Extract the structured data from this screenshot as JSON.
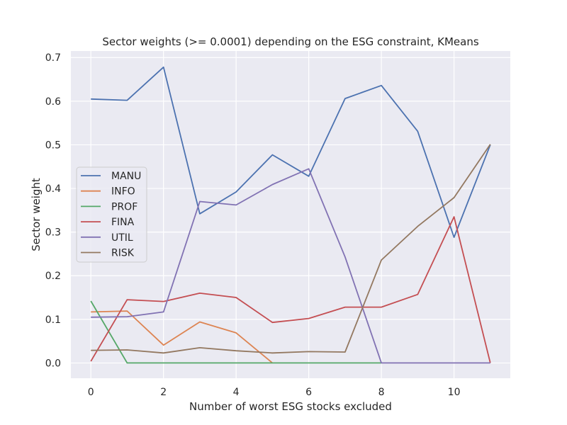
{
  "chart_data": {
    "type": "line",
    "title": "Sector weights (>= 0.0001) depending on the ESG constraint, KMeans",
    "xlabel": "Number of worst ESG stocks excluded",
    "ylabel": "Sector weight",
    "xlim": [
      -0.55,
      11.55
    ],
    "ylim": [
      -0.035,
      0.715
    ],
    "xticks": [
      0,
      2,
      4,
      6,
      8,
      10
    ],
    "yticks": [
      0.0,
      0.1,
      0.2,
      0.3,
      0.4,
      0.5,
      0.6,
      0.7
    ],
    "ytick_labels": [
      "0.0",
      "0.1",
      "0.2",
      "0.3",
      "0.4",
      "0.5",
      "0.6",
      "0.7"
    ],
    "grid": true,
    "legend_position": "center-left",
    "background": "#eaeaf2",
    "series": [
      {
        "name": "MANU",
        "color": "#4c72b0",
        "x": [
          0,
          1,
          2,
          3,
          4,
          5,
          6,
          7,
          8,
          9,
          10,
          11
        ],
        "y": [
          0.605,
          0.602,
          0.678,
          0.342,
          0.392,
          0.477,
          0.428,
          0.606,
          0.636,
          0.531,
          0.288,
          0.5
        ]
      },
      {
        "name": "INFO",
        "color": "#dd8452",
        "x": [
          0,
          1,
          2,
          3,
          4,
          5
        ],
        "y": [
          0.117,
          0.119,
          0.041,
          0.094,
          0.069,
          0.0
        ]
      },
      {
        "name": "PROF",
        "color": "#55a868",
        "x": [
          0,
          1,
          2,
          3,
          4,
          5,
          6,
          7,
          8
        ],
        "y": [
          0.142,
          0.0,
          0.0,
          0.0,
          0.0,
          0.0,
          0.0,
          0.0,
          0.0
        ]
      },
      {
        "name": "FINA",
        "color": "#c44e52",
        "x": [
          0,
          1,
          2,
          3,
          4,
          5,
          6,
          7,
          8,
          9,
          10,
          11
        ],
        "y": [
          0.004,
          0.145,
          0.141,
          0.16,
          0.15,
          0.093,
          0.102,
          0.128,
          0.128,
          0.157,
          0.335,
          0.0
        ]
      },
      {
        "name": "UTIL",
        "color": "#8172b3",
        "x": [
          0,
          1,
          2,
          3,
          4,
          5,
          6,
          7,
          8,
          9,
          10,
          11
        ],
        "y": [
          0.105,
          0.106,
          0.117,
          0.37,
          0.362,
          0.409,
          0.445,
          0.243,
          0.0,
          0.0,
          0.0,
          0.0
        ]
      },
      {
        "name": "RISK",
        "color": "#937860",
        "x": [
          0,
          1,
          2,
          3,
          4,
          5,
          6,
          7,
          8,
          9,
          10,
          11
        ],
        "y": [
          0.029,
          0.03,
          0.023,
          0.035,
          0.028,
          0.023,
          0.026,
          0.025,
          0.236,
          0.313,
          0.379,
          0.501
        ]
      }
    ]
  }
}
